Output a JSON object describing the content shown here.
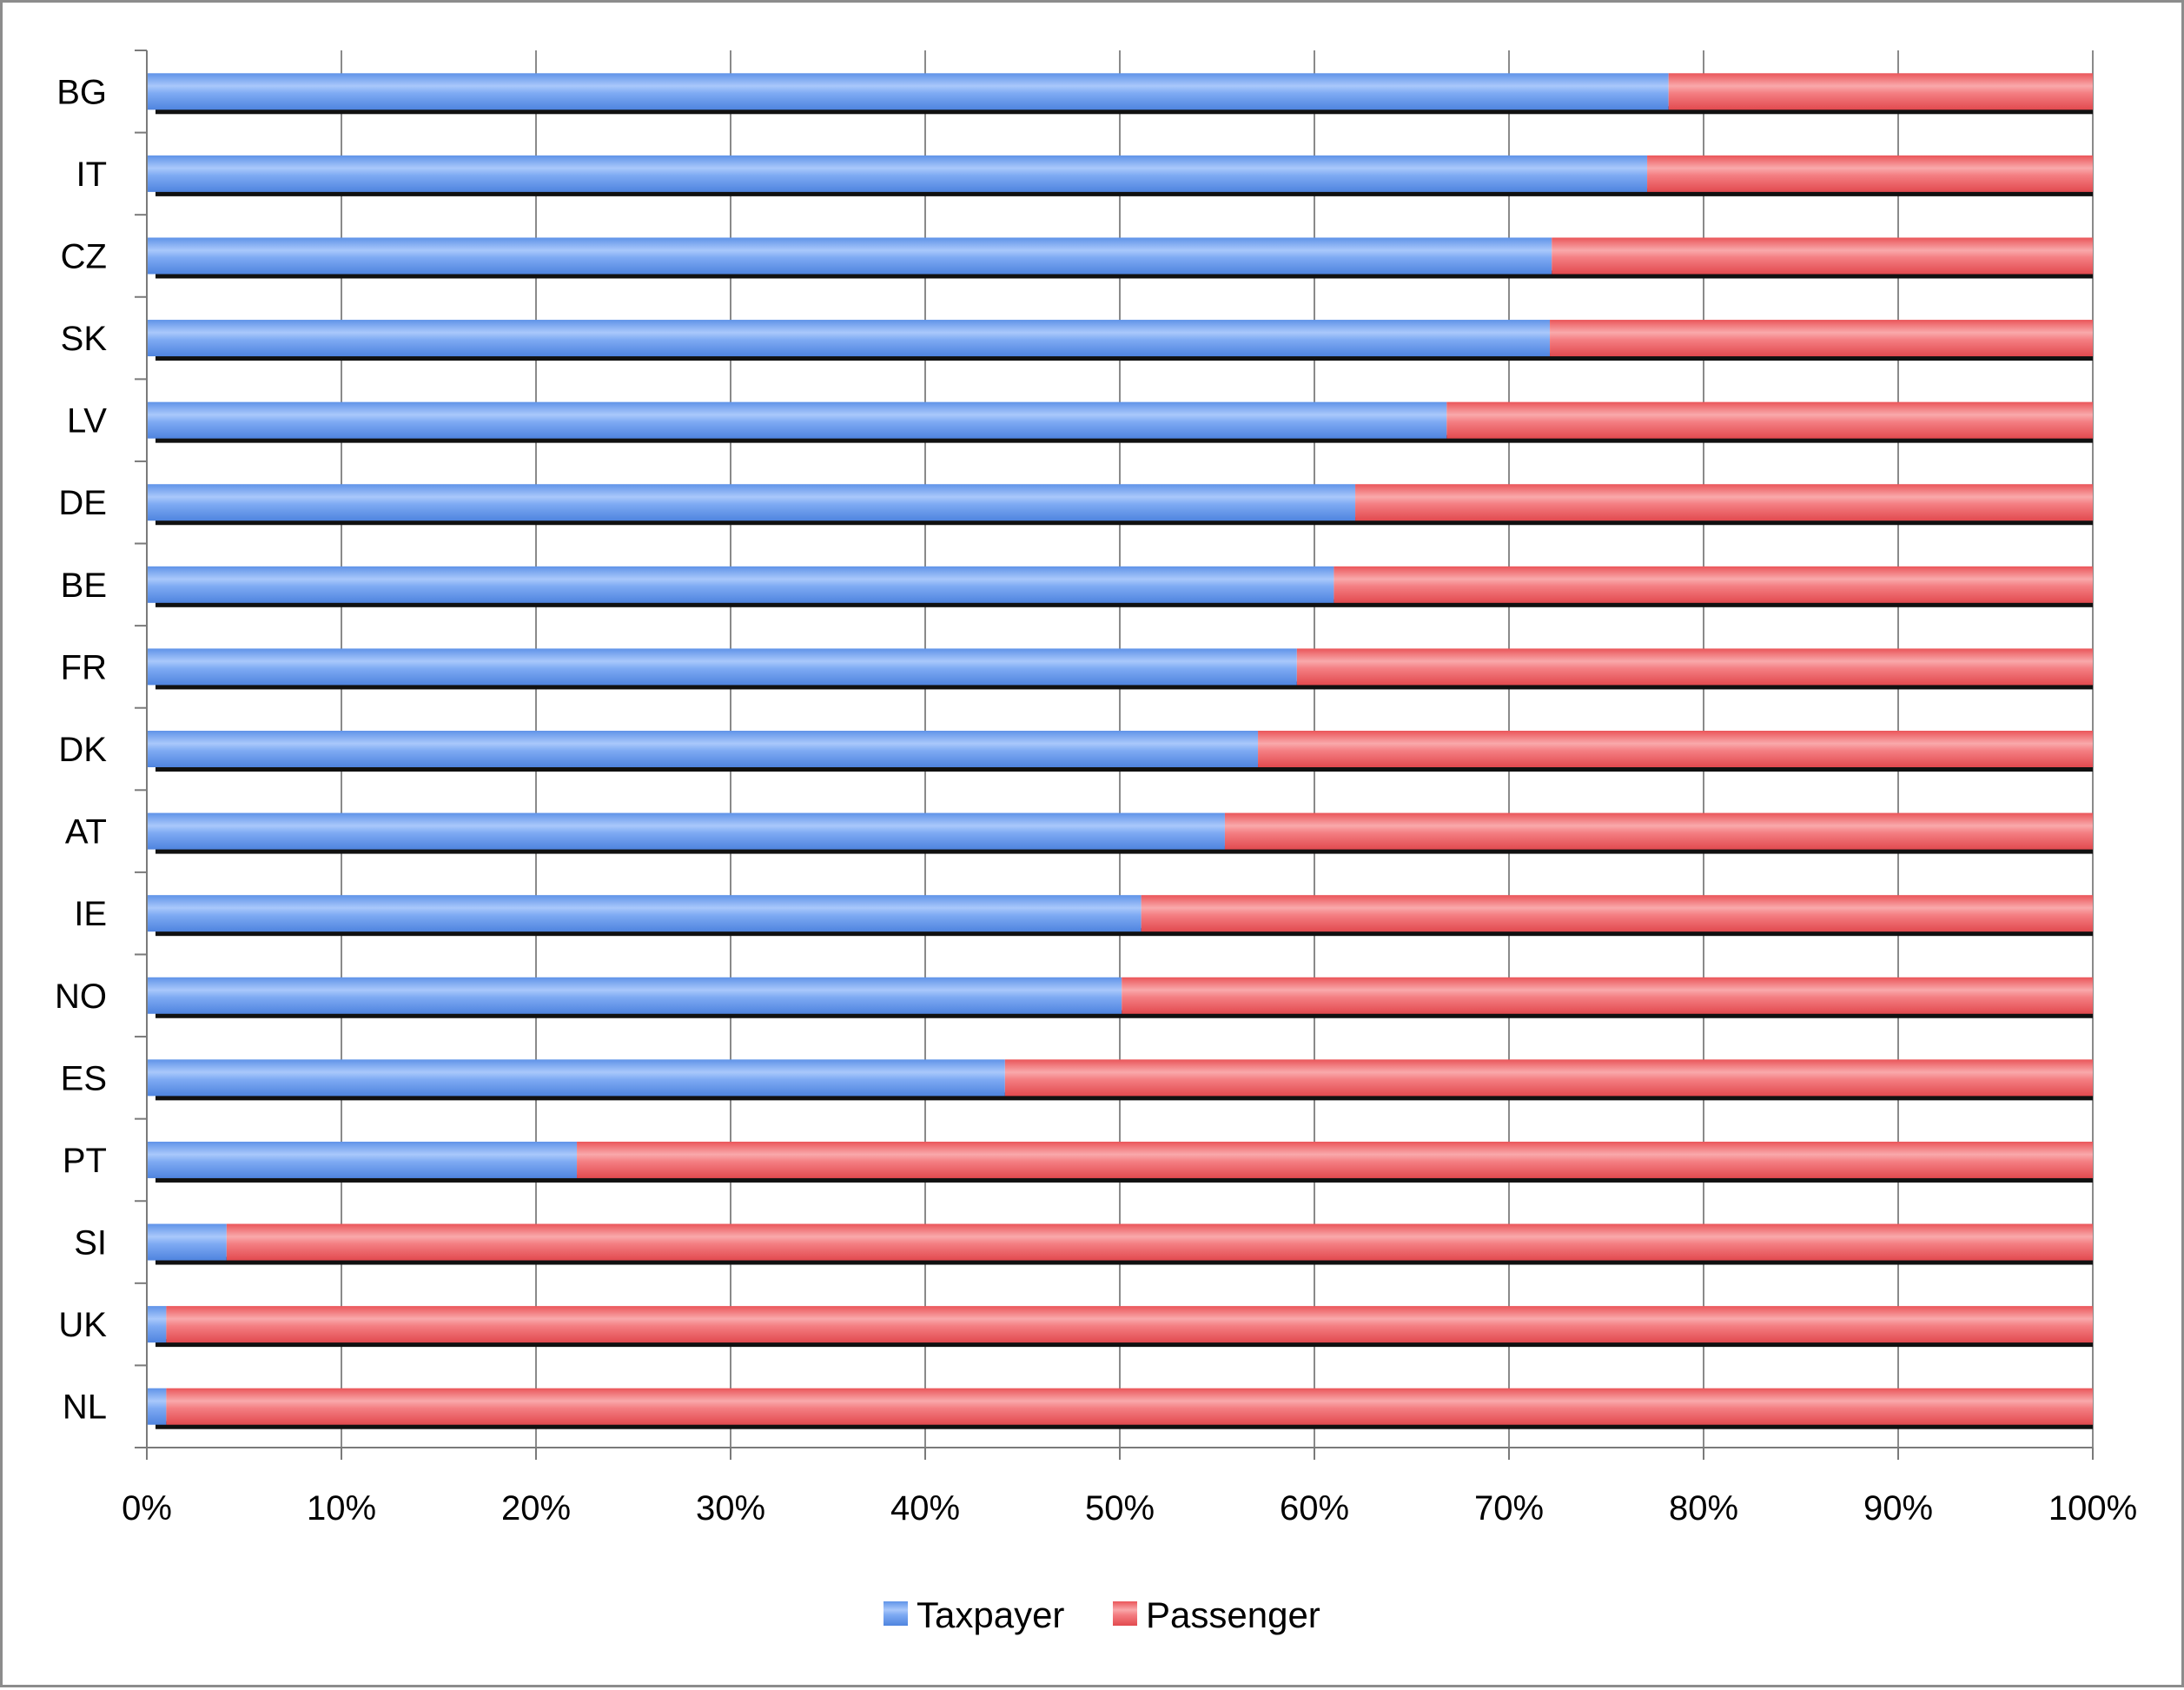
{
  "chart_data": {
    "type": "bar",
    "orientation": "horizontal",
    "stacking": "percent",
    "title": "",
    "xlabel": "",
    "ylabel": "",
    "xlim": [
      0,
      100
    ],
    "grid": true,
    "legend_position": "bottom",
    "categories": [
      "BG",
      "IT",
      "CZ",
      "SK",
      "LV",
      "DE",
      "BE",
      "FR",
      "DK",
      "AT",
      "IE",
      "NO",
      "ES",
      "PT",
      "SI",
      "UK",
      "NL"
    ],
    "series": [
      {
        "name": "Taxpayer",
        "color": "#5b8fe6",
        "values": [
          78.2,
          77.1,
          72.2,
          72.1,
          66.8,
          62.1,
          61.0,
          59.1,
          57.1,
          55.4,
          51.1,
          50.1,
          44.1,
          22.1,
          4.1,
          1.0,
          1.0
        ]
      },
      {
        "name": "Passenger",
        "color": "#ee5a5f",
        "values": [
          21.8,
          22.9,
          27.8,
          27.9,
          33.2,
          37.9,
          39.0,
          40.9,
          42.9,
          44.6,
          48.9,
          49.9,
          55.9,
          77.9,
          95.9,
          99.0,
          99.0
        ]
      }
    ],
    "x_ticks": [
      "0%",
      "10%",
      "20%",
      "30%",
      "40%",
      "50%",
      "60%",
      "70%",
      "80%",
      "90%",
      "100%"
    ]
  }
}
